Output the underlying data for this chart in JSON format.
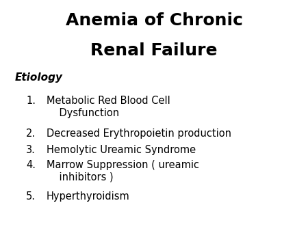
{
  "title_line1": "Anemia of Chronic",
  "title_line2": "Renal Failure",
  "subtitle": "Etiology",
  "items": [
    [
      "Metabolic Red Blood Cell",
      "    Dysfunction"
    ],
    [
      "Decreased Erythropoietin production"
    ],
    [
      "Hemolytic Ureamic Syndrome"
    ],
    [
      "Marrow Suppression ( ureamic",
      "    inhibitors )"
    ],
    [
      "Hyperthyroidism"
    ]
  ],
  "background_color": "#ffffff",
  "text_color": "#000000",
  "title_fontsize": 18,
  "subtitle_fontsize": 11,
  "item_fontsize": 10.5
}
